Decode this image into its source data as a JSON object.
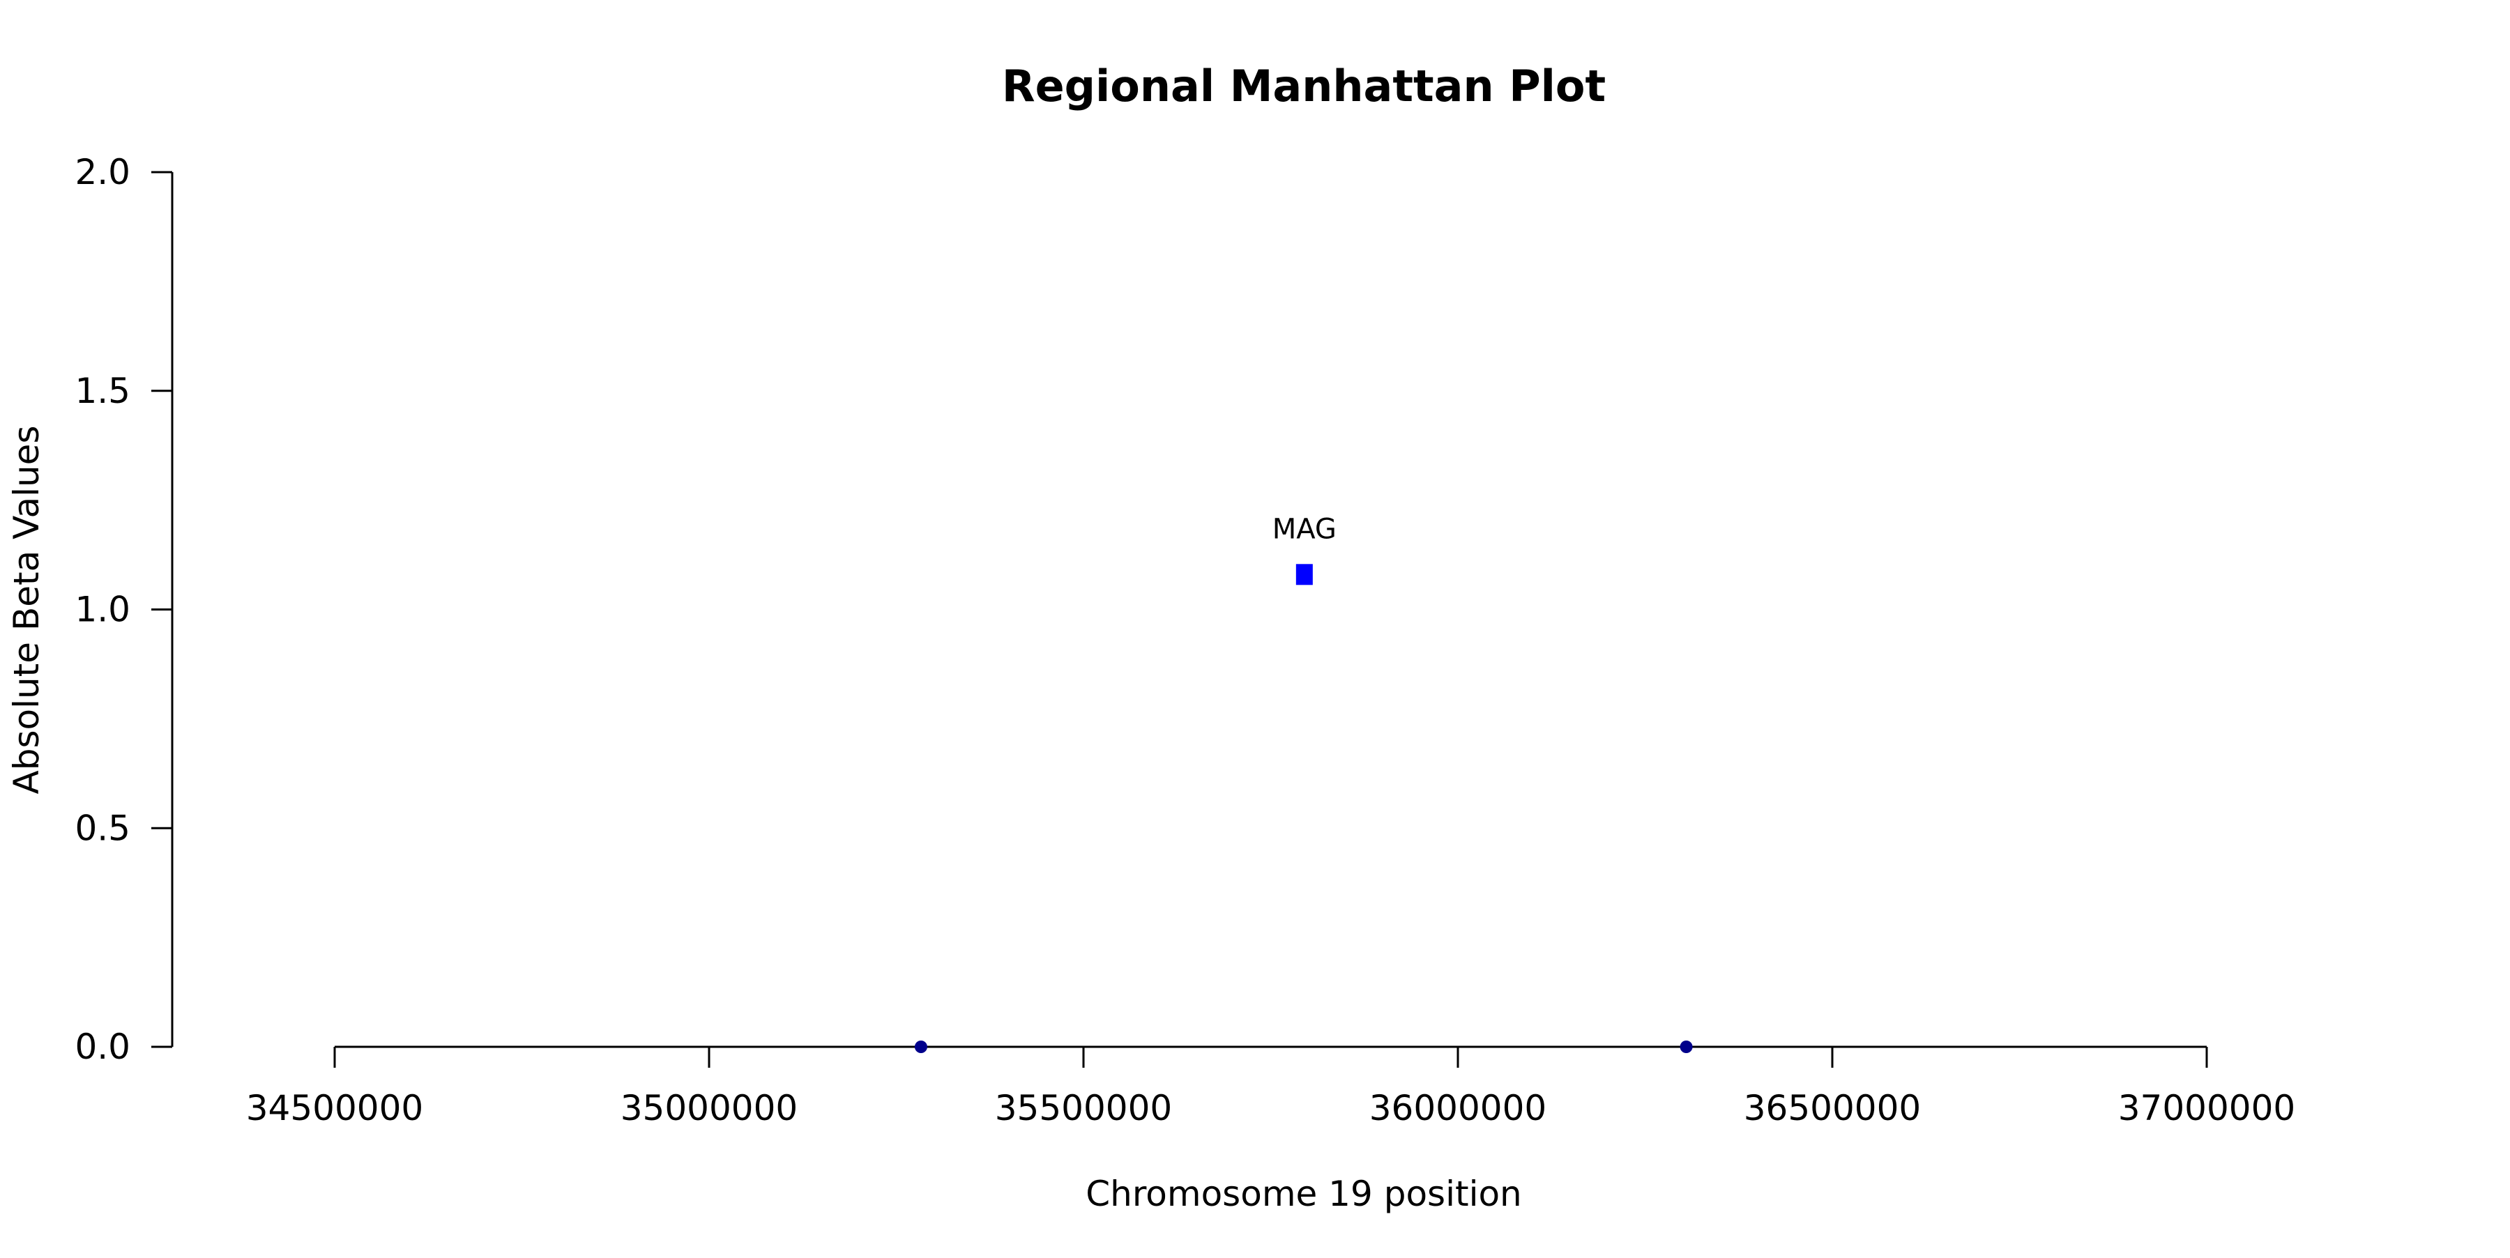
{
  "chart_data": {
    "type": "scatter",
    "title": "Regional Manhattan Plot",
    "xlabel": "Chromosome 19 position",
    "ylabel": "Absolute Beta Values",
    "xlim": [
      34500000,
      37000000
    ],
    "ylim": [
      0,
      2
    ],
    "x_ticks": [
      34500000,
      35000000,
      35500000,
      36000000,
      36500000,
      37000000
    ],
    "x_tick_labels": [
      "34500000",
      "35000000",
      "35500000",
      "36000000",
      "36500000",
      "37000000"
    ],
    "y_ticks": [
      0,
      0.5,
      1,
      1.5,
      2
    ],
    "y_tick_labels": [
      "0.0",
      "0.5",
      "1.0",
      "1.5",
      "2.0"
    ],
    "grid": false,
    "series": [
      {
        "marker": "circle",
        "color": "#00008b",
        "points": [
          {
            "x": 35283000,
            "y": 0
          },
          {
            "x": 36305000,
            "y": 0
          }
        ]
      },
      {
        "marker": "square",
        "color": "#0000ff",
        "points": [
          {
            "x": 35795000,
            "y": 1.08,
            "label": "MAG"
          }
        ]
      }
    ]
  }
}
